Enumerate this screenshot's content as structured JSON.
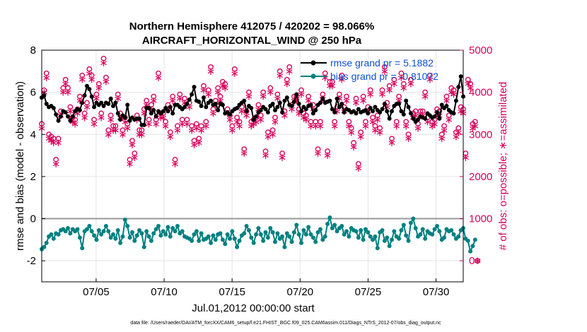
{
  "chart_data": {
    "type": "line",
    "title_line1": "Northern Hemisphere 412075 / 420202 = 98.066%",
    "title_line2": "AIRCRAFT_HORIZONTAL_WIND @ 250 hPa",
    "xlabel": "Jul.01,2012 00:00:00 start",
    "ylabel_left": "rmse and bias (model - observation)",
    "ylabel_right": "# of obs: o=possible; ∗=assimilated",
    "footer": "data file: /Users/raeder/DAI/ATM_forcXX/CAM6_setup/f.e21.FHIST_BGC.f09_025.CAM6assim.011/Diags_NTrS_2012-07/obs_diag_output.nc",
    "x_range": [
      1,
      32
    ],
    "x_ticks": [
      5,
      10,
      15,
      20,
      25,
      30
    ],
    "x_tick_labels": [
      "07/05",
      "07/10",
      "07/15",
      "07/20",
      "07/25",
      "07/30"
    ],
    "y_left_range": [
      -3,
      8
    ],
    "y_left_ticks": [
      "-2",
      "0",
      "2",
      "4",
      "6",
      "8"
    ],
    "y_right_range": [
      -500,
      5000
    ],
    "y_right_ticks": [
      "0",
      "1000",
      "2000",
      "3000",
      "4000",
      "5000"
    ],
    "legend": [
      {
        "label": "rmse grand pr = 5.1882",
        "color": "#000000"
      },
      {
        "label": "bias grand pr = -0.81072",
        "color": "#008080"
      }
    ],
    "colors": {
      "rmse": "#000000",
      "bias": "#008080",
      "obs": "#d8005a",
      "legend_text": "#0b4fd6",
      "zero_line": "#999999"
    },
    "rmse": [
      5.75,
      5.85,
      5.45,
      5.3,
      5.35,
      5.25,
      4.95,
      4.65,
      4.85,
      5.1,
      5.05,
      4.85,
      4.65,
      4.85,
      5.1,
      5.2,
      5.15,
      5.5,
      5.85,
      6.3,
      6.15,
      5.8,
      5.3,
      5.5,
      5.4,
      5.5,
      5.35,
      5.5,
      5.45,
      5.7,
      5.35,
      5.5,
      5.0,
      4.7,
      4.9,
      4.8,
      5.4,
      4.65,
      4.8,
      4.7,
      4.75,
      4.75,
      4.45,
      4.45,
      5.25,
      5.25,
      5.0,
      5.15,
      4.85,
      5.1,
      5.0,
      5.1,
      5.25,
      5.1,
      5.3,
      5.0,
      5.4,
      5.4,
      5.3,
      5.2,
      5.3,
      5.45,
      5.65,
      5.9,
      6.25,
      5.6,
      5.55,
      5.35,
      5.75,
      5.3,
      5.5,
      5.6,
      5.4,
      5.45,
      5.15,
      5.45,
      5.4,
      5.0,
      5.05,
      4.95,
      5.1,
      5.2,
      5.25,
      5.4,
      5.5,
      5.6,
      5.1,
      5.35,
      5.25,
      4.7,
      4.85,
      5.05,
      5.15,
      5.3,
      5.2,
      5.05,
      5.35,
      5.45,
      5.15,
      5.3,
      5.5,
      5.05,
      5.6,
      5.75,
      5.4,
      5.35,
      5.55,
      5.9,
      5.45,
      5.1,
      5.3,
      5.2,
      5.35,
      5.4,
      5.0,
      5.15,
      5.4,
      5.5,
      5.7,
      5.5,
      5.55,
      5.6,
      5.2,
      5.05,
      5.7,
      5.3,
      5.45,
      5.05,
      5.2,
      5.15,
      5.05,
      5.1,
      5.0,
      5.2,
      5.05,
      5.1,
      5.15,
      5.0,
      5.25,
      5.1,
      5.3,
      5.15,
      5.05,
      5.2,
      5.45,
      5.1,
      4.75,
      5.1,
      5.35,
      5.45,
      5.45,
      5.1,
      4.95,
      5.6,
      5.3,
      5.0,
      4.75,
      4.6,
      4.7,
      4.85,
      4.8,
      4.75,
      5.0,
      4.9,
      4.8,
      4.85,
      5.05,
      4.75,
      5.4,
      5.25,
      5.35,
      5.15,
      5.05,
      5.0,
      5.6,
      6.25,
      6.75,
      5.8
    ],
    "bias": [
      -1.45,
      -1.35,
      -1.15,
      -0.85,
      -0.75,
      -0.95,
      -0.7,
      -0.75,
      -0.55,
      -0.5,
      -0.6,
      -0.45,
      -0.7,
      -0.5,
      -0.6,
      -0.5,
      -0.9,
      -1.4,
      -0.6,
      -0.5,
      -0.35,
      -0.6,
      -0.8,
      -1.0,
      -0.55,
      -0.75,
      -0.6,
      -0.35,
      -0.6,
      -0.9,
      -0.75,
      -0.95,
      -0.55,
      -1.15,
      -0.85,
      -0.05,
      -0.35,
      -0.9,
      -0.65,
      -1.05,
      -0.8,
      -0.55,
      -0.7,
      -1.35,
      -0.6,
      -0.85,
      -1.05,
      -0.7,
      -0.5,
      -0.35,
      -0.8,
      -0.6,
      -0.75,
      -0.4,
      -0.85,
      -0.45,
      -0.6,
      -0.35,
      -0.7,
      -0.6,
      -0.85,
      -0.9,
      -0.95,
      -1.05,
      -0.75,
      -0.6,
      -1.05,
      -0.7,
      -1.0,
      -0.95,
      -0.85,
      -1.15,
      -0.8,
      -1.0,
      -0.75,
      -0.7,
      -1.0,
      -1.2,
      -0.75,
      -0.95,
      -0.6,
      -0.95,
      -1.35,
      -1.05,
      -0.8,
      -0.7,
      -0.35,
      -0.55,
      -0.9,
      -1.15,
      -0.75,
      -0.45,
      -0.75,
      -1.05,
      -0.65,
      -0.9,
      -0.45,
      -0.65,
      -1.1,
      -0.7,
      -0.95,
      -0.85,
      -1.35,
      -0.7,
      -0.85,
      -1.1,
      -0.65,
      -0.3,
      -0.75,
      -1.15,
      -0.55,
      -0.75,
      -0.4,
      -0.75,
      -0.9,
      -1.1,
      -0.65,
      -0.5,
      -1.0,
      -0.85,
      -0.25,
      0.05,
      -0.45,
      -0.3,
      -0.6,
      -0.45,
      -0.35,
      -0.75,
      -0.6,
      -0.85,
      -0.45,
      -0.55,
      -0.6,
      -0.9,
      -0.55,
      -1.0,
      -0.5,
      -0.65,
      -0.85,
      -1.0,
      -0.85,
      -1.4,
      -0.65,
      -0.55,
      -1.05,
      -0.9,
      -1.3,
      -1.0,
      -0.6,
      -0.85,
      -0.95,
      -0.55,
      -0.3,
      -0.8,
      -1.05,
      -0.2,
      0.0,
      -0.45,
      -0.85,
      -0.75,
      -0.5,
      -0.95,
      -0.6,
      -0.7,
      -0.75,
      -0.5,
      -0.35,
      -0.6,
      -1.0,
      -0.9,
      -0.5,
      -0.6,
      -0.55,
      -0.75,
      -0.95,
      -0.85,
      -0.55,
      -0.45,
      -0.95,
      -1.05,
      -1.55,
      -1.3,
      -1.0
    ],
    "obs_possible": [
      3250,
      4050,
      4450,
      3000,
      2950,
      2900,
      2400,
      2900,
      3550,
      4100,
      4300,
      4100,
      3650,
      3400,
      3350,
      3600,
      3900,
      4400,
      3500,
      3750,
      4550,
      4400,
      3350,
      3950,
      4200,
      3500,
      4800,
      4350,
      3100,
      3450,
      3200,
      3200,
      3950,
      3500,
      3100,
      3400,
      3250,
      2400,
      2850,
      2550,
      3450,
      3100,
      3100,
      3600,
      3800,
      3350,
      3700,
      3900,
      3350,
      4450,
      3500,
      3500,
      3300,
      3700,
      3050,
      3900,
      2400,
      3200,
      3950,
      3350,
      3850,
      3350,
      3750,
      3200,
      2850,
      3250,
      2900,
      3200,
      4150,
      3300,
      4050,
      4600,
      3600,
      3800,
      4100,
      3900,
      4250,
      4200,
      3600,
      3450,
      3200,
      4550,
      3400,
      3300,
      3650,
      2650,
      3550,
      4000,
      3300,
      3350,
      3400,
      3700,
      3450,
      4000,
      2600,
      3050,
      4100,
      3100,
      3400,
      3950,
      4500,
      2550,
      3550,
      4300,
      4600,
      3700,
      3900,
      3900,
      3600,
      4050,
      3500,
      3450,
      3900,
      3300,
      3700,
      3300,
      2650,
      3300,
      3950,
      4450,
      2600,
      4250,
      4250,
      3300,
      3650,
      3950,
      4400,
      3650,
      3900,
      3300,
      3150,
      2800,
      3850,
      2300,
      3050,
      3900,
      3300,
      3650,
      4050,
      3400,
      3200,
      3450,
      3150,
      4050,
      4600,
      3750,
      4150,
      2900,
      4300,
      3300,
      3900,
      4450,
      4200,
      3300,
      3000,
      4300,
      3500,
      3550,
      3250,
      3550,
      3550,
      4000,
      3400,
      4400,
      3300,
      3350,
      3600,
      3550,
      3000,
      3200,
      3900,
      3450,
      4100,
      4050,
      3050,
      3150,
      3650,
      3600,
      2550,
      4300,
      4200,
      3250,
      3300,
      -0.5
    ],
    "obs_assimilated": [
      3150,
      4000,
      4350,
      2900,
      2850,
      2800,
      2300,
      2800,
      3450,
      4000,
      4200,
      4000,
      3550,
      3300,
      3250,
      3500,
      3800,
      4300,
      3400,
      3650,
      4450,
      4300,
      3250,
      3850,
      4100,
      3400,
      4700,
      4250,
      3000,
      3350,
      3100,
      3100,
      3850,
      3400,
      3000,
      3300,
      3150,
      2300,
      2750,
      2450,
      3350,
      3000,
      3000,
      3500,
      3700,
      3250,
      3600,
      3800,
      3250,
      4350,
      3400,
      3400,
      3200,
      3600,
      2950,
      3800,
      2300,
      3100,
      3850,
      3250,
      3750,
      3250,
      3650,
      3100,
      2750,
      3150,
      2800,
      3100,
      4050,
      3200,
      3950,
      4500,
      3500,
      3700,
      4000,
      3800,
      4150,
      4100,
      3500,
      3350,
      3100,
      4450,
      3300,
      3200,
      3550,
      2550,
      3450,
      3900,
      3200,
      3250,
      3300,
      3600,
      3350,
      3900,
      2500,
      2950,
      4000,
      3000,
      3300,
      3850,
      4400,
      2450,
      3450,
      4200,
      4500,
      3600,
      3800,
      3800,
      3500,
      3950,
      3400,
      3350,
      3800,
      3200,
      3600,
      3200,
      2550,
      3200,
      3850,
      4350,
      2500,
      4150,
      4150,
      3200,
      3550,
      3850,
      4300,
      3550,
      3800,
      3200,
      3050,
      2700,
      3750,
      2200,
      2950,
      3800,
      3200,
      3550,
      3950,
      3300,
      3100,
      3350,
      3050,
      3950,
      4500,
      3650,
      4050,
      2800,
      4200,
      3200,
      3800,
      4350,
      4100,
      3200,
      2900,
      4200,
      3400,
      3450,
      3150,
      3450,
      3450,
      3900,
      3300,
      4300,
      3200,
      3250,
      3500,
      3450,
      2900,
      3100,
      3800,
      3350,
      4000,
      3950,
      2950,
      3050,
      3550,
      3500,
      2450,
      4200,
      4100,
      3150,
      3200,
      -0.5
    ]
  }
}
